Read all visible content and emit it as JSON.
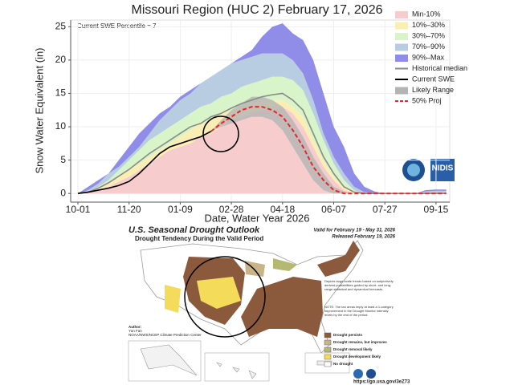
{
  "chart_data": {
    "type": "line",
    "title": "Missouri Region (HUC 2) February 17, 2026",
    "annotation": "Current SWE Percentile = 7",
    "xlabel": "Date, Water Year 2026",
    "ylabel": "Snow Water Equivalent (in)",
    "logo_text": "NIDIS",
    "categories": [
      "10-01",
      null,
      null,
      null,
      null,
      "11-20",
      null,
      null,
      null,
      null,
      "01-09",
      null,
      null,
      null,
      null,
      "02-28",
      null,
      null,
      null,
      null,
      "04-18",
      null,
      null,
      null,
      null,
      "06-07",
      null,
      null,
      null,
      null,
      "07-27",
      null,
      null,
      null,
      null,
      "09-15",
      null
    ],
    "ylim": [
      -1.3,
      26
    ],
    "yticks": [
      0,
      5,
      10,
      15,
      20,
      25
    ],
    "grid": true,
    "series": [
      {
        "name": "Min-10%",
        "kind": "band",
        "color": "#f7cccc",
        "values": [
          0,
          0.1,
          0.5,
          1,
          1.8,
          2.5,
          3.5,
          4.5,
          5.5,
          6.5,
          7,
          7.5,
          8.5,
          9,
          10,
          11,
          11.5,
          12,
          12.5,
          12.5,
          13,
          12,
          10,
          7,
          4,
          2,
          0.5,
          0,
          0,
          0,
          0,
          0,
          0,
          0,
          0,
          0,
          0
        ]
      },
      {
        "name": "10%–30%",
        "kind": "band",
        "color": "#fbeeb2",
        "values": [
          0,
          0.2,
          0.8,
          1.5,
          2.5,
          3.5,
          4.5,
          5.5,
          6.5,
          7.5,
          8.5,
          9.5,
          10.5,
          11,
          12,
          12.5,
          13,
          13.5,
          14,
          14,
          14,
          13,
          11.5,
          8,
          5,
          2.5,
          1,
          0.2,
          0,
          0,
          0,
          0,
          0,
          0,
          0,
          0,
          0
        ]
      },
      {
        "name": "30%–70%",
        "kind": "band",
        "color": "#d8f4c9",
        "values": [
          0,
          0.3,
          1,
          2,
          3.5,
          5,
          6.5,
          8,
          9,
          10,
          11,
          12,
          13,
          13.5,
          14.5,
          15,
          16,
          16.5,
          17,
          17.5,
          17.5,
          17,
          15.5,
          12,
          8,
          4.5,
          2,
          0.5,
          0,
          0,
          0,
          0,
          0,
          0,
          0,
          0,
          0
        ]
      },
      {
        "name": "70%–90%",
        "kind": "band",
        "color": "#b9cde2",
        "values": [
          0,
          0.5,
          1.5,
          3,
          5,
          7,
          9,
          10.5,
          12,
          13,
          14.5,
          15.5,
          16.5,
          17.5,
          18.5,
          19.5,
          20,
          20.5,
          21,
          21,
          21,
          20,
          18,
          14,
          9,
          5.5,
          3,
          1,
          0.2,
          0,
          0,
          0,
          0,
          0,
          0.3,
          0.4,
          0.4
        ]
      },
      {
        "name": "90%–Max",
        "kind": "band",
        "color": "#908de8",
        "values": [
          0,
          1,
          2,
          3,
          4,
          5.5,
          7,
          9,
          11,
          12.5,
          14,
          15,
          16.5,
          17.5,
          18.5,
          19.5,
          20.5,
          21.5,
          23.5,
          25,
          25.5,
          24,
          23,
          20,
          15,
          10,
          7,
          3,
          1,
          0.3,
          0,
          0,
          0,
          0,
          0.5,
          0.6,
          0.6
        ]
      },
      {
        "name": "Historical median",
        "kind": "line",
        "color": "#8a8a8a",
        "values": [
          0,
          0.2,
          0.8,
          1.6,
          2.6,
          3.6,
          4.8,
          6,
          7,
          8,
          9,
          10,
          10.5,
          11.5,
          12,
          12.8,
          13.5,
          14,
          14.5,
          14.8,
          15,
          14,
          12.5,
          9,
          5.5,
          3,
          1,
          0.2,
          0,
          0,
          0,
          0,
          0,
          0,
          0,
          0,
          0
        ]
      },
      {
        "name": "Current SWE",
        "kind": "line",
        "color": "#000000",
        "values": [
          0,
          0.2,
          0.5,
          0.8,
          1.2,
          1.8,
          3,
          4.5,
          6,
          7,
          7.5,
          8,
          8.5,
          9.3,
          null,
          null,
          null,
          null,
          null,
          null,
          null,
          null,
          null,
          null,
          null,
          null,
          null,
          null,
          null,
          null,
          null,
          null,
          null,
          null,
          null,
          null,
          null
        ]
      },
      {
        "name": "Likely Range",
        "kind": "range",
        "color": "#b4b4b4",
        "low": [
          null,
          null,
          null,
          null,
          null,
          null,
          null,
          null,
          null,
          null,
          null,
          null,
          null,
          9.3,
          10,
          10.5,
          11,
          11.5,
          11.5,
          11,
          9.5,
          7,
          4.5,
          2,
          0.5,
          0,
          0,
          0,
          null,
          null,
          null,
          null,
          null,
          null,
          null,
          null,
          null
        ],
        "values": [
          null,
          null,
          null,
          null,
          null,
          null,
          null,
          null,
          null,
          null,
          null,
          null,
          null,
          9.3,
          11,
          12.5,
          13.5,
          14.5,
          14.5,
          14,
          13,
          11,
          8.5,
          5.5,
          3,
          1,
          0.3,
          0,
          null,
          null,
          null,
          null,
          null,
          null,
          null,
          null,
          null
        ]
      },
      {
        "name": "50% Proj",
        "kind": "dashed",
        "color": "#e8262a",
        "values": [
          null,
          null,
          null,
          null,
          null,
          null,
          null,
          null,
          null,
          null,
          null,
          null,
          null,
          9.3,
          10.5,
          11.5,
          12.5,
          13,
          13,
          12.5,
          11.5,
          9.5,
          7,
          4,
          2,
          0.5,
          0,
          0,
          0,
          0,
          0,
          0,
          0,
          0,
          0,
          0,
          0
        ]
      }
    ]
  },
  "map": {
    "title": "U.S. Seasonal Drought Outlook",
    "subtitle": "Drought Tendency During the Valid Period",
    "valid": "Valid for February 19 - May 31, 2026",
    "released": "Released February 19, 2026",
    "notes": [
      "Depicts large-scale trends based on subjectively derived probabilities guided by short- and long-range statistical and dynamical forecasts.",
      "NOTE: The tan areas imply at least a 1-category improvement in the Drought Monitor intensity levels by the end of the period."
    ],
    "author": [
      "Author:",
      "Yun Fan",
      "NOAA/NWS/NCEP Climate Prediction Center"
    ],
    "legend": [
      {
        "label": "Drought persists",
        "color": "#8b5a3c"
      },
      {
        "label": "Drought remains, but improves",
        "color": "#c9b48a"
      },
      {
        "label": "Drought removal likely",
        "color": "#b5b870"
      },
      {
        "label": "Drought development likely",
        "color": "#f4dc5a"
      },
      {
        "label": "No drought",
        "color": "#ffffff"
      }
    ],
    "url": "https://go.usa.gov/3eZ73"
  }
}
